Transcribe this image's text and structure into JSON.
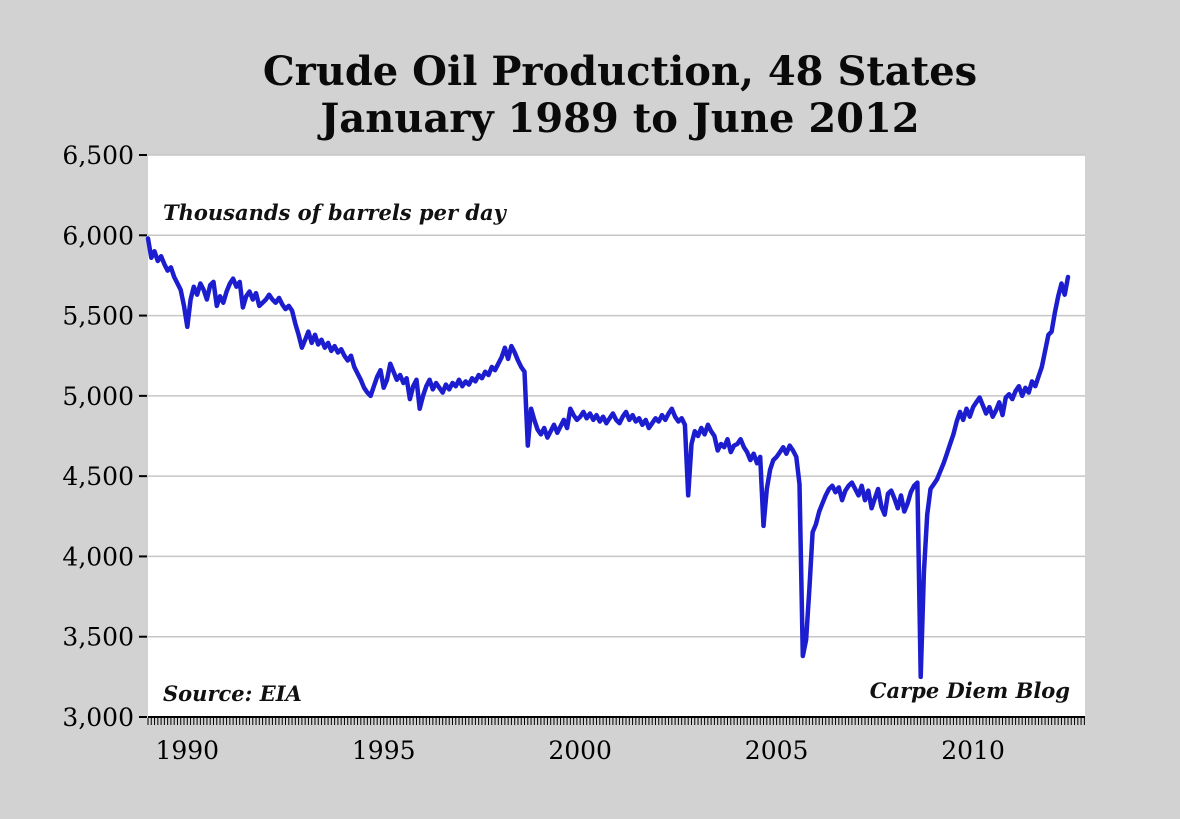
{
  "title": {
    "line1": "Crude Oil Production, 48 States",
    "line2": "January 1989 to June 2012"
  },
  "annotations": {
    "units": "Thousands of barrels per day",
    "source": "Source: EIA",
    "credit": "Carpe Diem Blog"
  },
  "chart_data": {
    "type": "line",
    "title": "Crude Oil Production, 48 States — January 1989 to June 2012",
    "ylabel": "Thousands of barrels per day",
    "frequency": "monthly",
    "x_start": "1989-01",
    "x_end": "2012-06",
    "ylim": [
      3000,
      6500
    ],
    "ytick_step": 500,
    "ytick_values": [
      3000,
      3500,
      4000,
      4500,
      5000,
      5500,
      6000,
      6500
    ],
    "ytick_labels": [
      "3,000",
      "3,500",
      "4,000",
      "4,500",
      "5,000",
      "5,500",
      "6,000",
      "6,500"
    ],
    "xtick_years": [
      1990,
      1995,
      2000,
      2005,
      2010
    ],
    "xtick_labels": [
      "1990",
      "1995",
      "2000",
      "2005",
      "2010"
    ],
    "grid": true,
    "legend": "none",
    "line_color": "#1d1dd0",
    "grid_color": "#c6c6c6",
    "axis_color": "#000000",
    "background_color": "#d2d2d2",
    "plot_background": "#ffffff",
    "values": [
      5980,
      5860,
      5900,
      5840,
      5870,
      5820,
      5780,
      5800,
      5740,
      5700,
      5660,
      5560,
      5430,
      5600,
      5680,
      5630,
      5700,
      5660,
      5600,
      5690,
      5710,
      5560,
      5620,
      5580,
      5650,
      5700,
      5730,
      5680,
      5710,
      5550,
      5620,
      5650,
      5600,
      5640,
      5560,
      5580,
      5600,
      5630,
      5600,
      5580,
      5610,
      5570,
      5540,
      5560,
      5530,
      5450,
      5380,
      5300,
      5350,
      5400,
      5330,
      5380,
      5320,
      5350,
      5300,
      5330,
      5280,
      5310,
      5270,
      5290,
      5250,
      5220,
      5250,
      5180,
      5140,
      5100,
      5050,
      5020,
      5000,
      5060,
      5120,
      5160,
      5050,
      5100,
      5200,
      5150,
      5100,
      5130,
      5080,
      5110,
      4980,
      5060,
      5100,
      4920,
      5000,
      5060,
      5100,
      5040,
      5080,
      5050,
      5020,
      5070,
      5040,
      5080,
      5060,
      5100,
      5060,
      5090,
      5070,
      5110,
      5090,
      5130,
      5110,
      5150,
      5130,
      5180,
      5160,
      5200,
      5240,
      5300,
      5230,
      5310,
      5270,
      5220,
      5180,
      5150,
      4690,
      4920,
      4850,
      4790,
      4760,
      4800,
      4740,
      4780,
      4820,
      4770,
      4810,
      4850,
      4800,
      4920,
      4880,
      4850,
      4870,
      4900,
      4860,
      4890,
      4850,
      4880,
      4840,
      4870,
      4830,
      4860,
      4890,
      4850,
      4830,
      4870,
      4900,
      4850,
      4880,
      4840,
      4860,
      4820,
      4850,
      4800,
      4830,
      4860,
      4840,
      4880,
      4850,
      4890,
      4920,
      4870,
      4840,
      4860,
      4820,
      4380,
      4700,
      4780,
      4750,
      4800,
      4760,
      4820,
      4780,
      4750,
      4660,
      4700,
      4680,
      4730,
      4650,
      4690,
      4700,
      4730,
      4680,
      4650,
      4600,
      4640,
      4580,
      4620,
      4190,
      4420,
      4540,
      4600,
      4620,
      4650,
      4680,
      4640,
      4690,
      4660,
      4620,
      4450,
      3380,
      3480,
      3800,
      4150,
      4200,
      4280,
      4330,
      4380,
      4420,
      4440,
      4400,
      4430,
      4350,
      4410,
      4440,
      4460,
      4420,
      4380,
      4440,
      4350,
      4410,
      4300,
      4360,
      4420,
      4310,
      4260,
      4390,
      4410,
      4360,
      4300,
      4380,
      4280,
      4330,
      4400,
      4440,
      4460,
      3250,
      3900,
      4260,
      4420,
      4450,
      4480,
      4530,
      4580,
      4640,
      4700,
      4760,
      4840,
      4900,
      4850,
      4920,
      4870,
      4930,
      4960,
      4990,
      4940,
      4890,
      4930,
      4870,
      4910,
      4960,
      4880,
      4990,
      5010,
      4980,
      5030,
      5060,
      5000,
      5050,
      5020,
      5090,
      5060,
      5120,
      5180,
      5280,
      5380,
      5400,
      5520,
      5620,
      5700,
      5630,
      5740
    ]
  }
}
